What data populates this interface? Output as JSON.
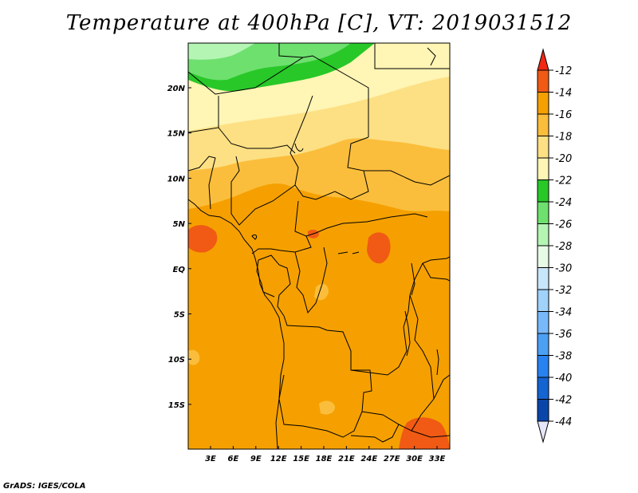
{
  "title": "Temperature at 400hPa [C], VT: 2019031512",
  "credit": "GrADS: IGES/COLA",
  "map": {
    "lon_ticks": [
      "3E",
      "6E",
      "9E",
      "12E",
      "15E",
      "18E",
      "21E",
      "24E",
      "27E",
      "30E",
      "33E"
    ],
    "lat_ticks": [
      "20N",
      "15N",
      "10N",
      "5N",
      "EQ",
      "5S",
      "10S",
      "15S"
    ],
    "regions": [
      {
        "name": "sahara-north-cold",
        "range": "-26 to -24",
        "color": "#6ee06e"
      },
      {
        "name": "sahel-band",
        "range": "-22 to -20",
        "color": "#fff5b4"
      },
      {
        "name": "central-africa",
        "range": "-16 to -14",
        "color": "#f5a000"
      },
      {
        "name": "warm-spots",
        "range": "-14 to -12",
        "color": "#f06414"
      }
    ]
  },
  "colorbar": {
    "levels": [
      "-12",
      "-14",
      "-16",
      "-18",
      "-20",
      "-22",
      "-24",
      "-26",
      "-28",
      "-30",
      "-32",
      "-34",
      "-36",
      "-38",
      "-40",
      "-42",
      "-44"
    ],
    "colors": [
      "#f05a14",
      "#f5a000",
      "#fbbe3c",
      "#fde084",
      "#fff5b4",
      "#28c828",
      "#6ee06e",
      "#b4f5b4",
      "#e6fae6",
      "#c8e6fa",
      "#a0d2fa",
      "#78b9fa",
      "#4ba0f5",
      "#2882f0",
      "#1464d2",
      "#0a46aa",
      "#0a1e78"
    ],
    "top_color": "#f02814",
    "bottom_color": "#e6e6fa"
  }
}
